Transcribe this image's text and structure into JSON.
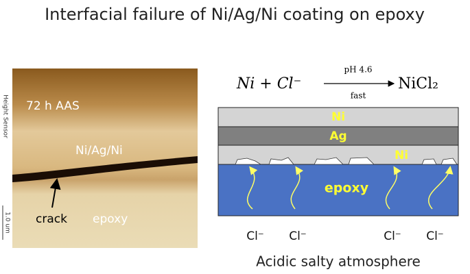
{
  "header": {
    "title": "Interfacial failure of Ni/Ag/Ni coating on epoxy"
  },
  "micrograph": {
    "axis_label": "Height Sensor",
    "scale_bar": "1.0 um",
    "condition": "72 h AAS",
    "coating_label": "Ni/Ag/Ni",
    "crack_label": "crack",
    "substrate_label": "epoxy"
  },
  "equation": {
    "reactants": "Ni + Cl⁻",
    "condition_above": "pH 4.6",
    "condition_below": "fast",
    "product": "NiCl₂"
  },
  "schematic": {
    "layers": [
      "Ni",
      "Ag",
      "Ni",
      "epoxy"
    ],
    "ions": [
      "Cl⁻",
      "Cl⁻",
      "Cl⁻",
      "Cl⁻"
    ],
    "caption": "Acidic salty atmosphere"
  }
}
